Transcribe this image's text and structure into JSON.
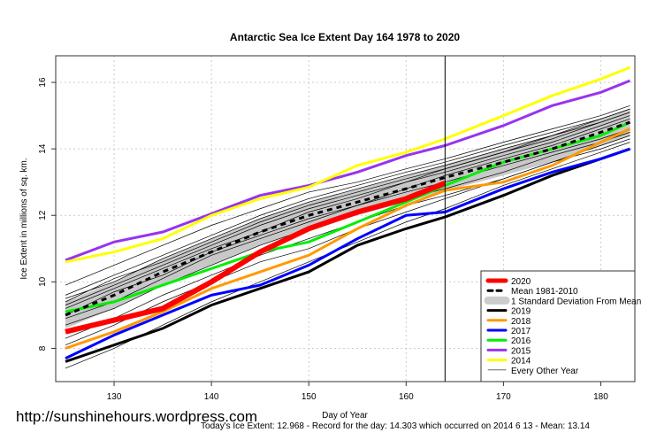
{
  "chart_data": {
    "type": "line",
    "title": "Antarctic Sea Ice Extent Day 164 1978 to 2020",
    "xlabel": "Day of Year",
    "ylabel": "Ice Extent in millions of sq. km.",
    "xlim": [
      124,
      183.5
    ],
    "ylim": [
      7.0,
      16.8
    ],
    "xticks": [
      130,
      140,
      150,
      160,
      170,
      180
    ],
    "yticks": [
      8,
      10,
      12,
      14,
      16
    ],
    "grid": true,
    "marker_day": 164,
    "legend_position": "bottom-right",
    "legend": [
      "2020",
      "Mean 1981-2010",
      "1 Standard Deviation From Mean",
      "2019",
      "2018",
      "2017",
      "2016",
      "2015",
      "2014",
      "Every Other Year"
    ],
    "x": [
      125,
      130,
      135,
      140,
      145,
      150,
      155,
      160,
      164,
      170,
      175,
      180,
      183
    ],
    "mean": {
      "name": "Mean 1981-2010",
      "color": "#000000",
      "values": [
        9.0,
        9.6,
        10.3,
        10.9,
        11.5,
        12.0,
        12.4,
        12.8,
        13.14,
        13.6,
        14.0,
        14.5,
        14.8
      ]
    },
    "std_dev": 0.4,
    "band_color": "#c8c8c8",
    "series": [
      {
        "name": "2019",
        "color": "#000000",
        "values": [
          7.6,
          8.1,
          8.6,
          9.3,
          9.8,
          10.3,
          11.1,
          11.6,
          11.95,
          12.6,
          13.2,
          13.7,
          14.0
        ]
      },
      {
        "name": "2018",
        "color": "#ff9900",
        "values": [
          8.0,
          8.5,
          9.1,
          9.8,
          10.3,
          10.8,
          11.6,
          12.3,
          12.75,
          13.0,
          13.5,
          14.2,
          14.6
        ]
      },
      {
        "name": "2017",
        "color": "#0000ff",
        "values": [
          7.7,
          8.4,
          9.0,
          9.6,
          9.9,
          10.5,
          11.3,
          12.0,
          12.1,
          12.8,
          13.3,
          13.7,
          14.0
        ]
      },
      {
        "name": "2016",
        "color": "#00ee00",
        "values": [
          9.1,
          9.4,
          9.9,
          10.4,
          10.9,
          11.2,
          11.8,
          12.4,
          12.9,
          13.6,
          14.0,
          14.4,
          14.8
        ]
      },
      {
        "name": "2015",
        "color": "#9933ee",
        "values": [
          10.65,
          11.2,
          11.5,
          12.05,
          12.6,
          12.9,
          13.3,
          13.8,
          14.1,
          14.7,
          15.3,
          15.7,
          16.05
        ]
      },
      {
        "name": "2014",
        "color": "#ffff00",
        "values": [
          10.6,
          10.9,
          11.3,
          12.0,
          12.5,
          12.85,
          13.5,
          13.9,
          14.3,
          15.0,
          15.6,
          16.1,
          16.45
        ]
      },
      {
        "name": "2020",
        "color": "#ff0000",
        "values": [
          8.5,
          8.85,
          9.2,
          10.0,
          10.9,
          11.6,
          12.1,
          12.5,
          12.97,
          null,
          null,
          null,
          null
        ]
      }
    ],
    "other_years_color": "#000000",
    "other_years": [
      [
        9.9,
        10.5,
        11.1,
        11.7,
        12.2,
        12.7,
        13.0,
        13.4,
        13.7,
        14.2,
        14.6,
        15.0,
        15.3
      ],
      [
        9.5,
        10.0,
        10.7,
        11.3,
        11.9,
        12.4,
        12.8,
        13.2,
        13.5,
        14.0,
        14.4,
        14.9,
        15.2
      ],
      [
        9.3,
        9.9,
        10.5,
        11.1,
        11.7,
        12.2,
        12.6,
        13.0,
        13.3,
        13.8,
        14.2,
        14.7,
        15.0
      ],
      [
        8.9,
        9.4,
        10.1,
        10.8,
        11.3,
        11.8,
        12.3,
        12.7,
        13.0,
        13.5,
        13.9,
        14.3,
        14.6
      ],
      [
        8.7,
        9.2,
        9.9,
        10.5,
        11.1,
        11.6,
        12.1,
        12.5,
        12.8,
        13.3,
        13.8,
        14.2,
        14.5
      ],
      [
        8.3,
        8.9,
        9.6,
        10.2,
        10.8,
        11.3,
        11.8,
        12.3,
        12.6,
        13.1,
        13.6,
        14.0,
        14.3
      ],
      [
        9.2,
        9.8,
        10.4,
        11.0,
        11.5,
        12.1,
        12.5,
        13.0,
        13.4,
        13.9,
        14.3,
        14.8,
        15.1
      ],
      [
        9.6,
        10.2,
        10.8,
        11.4,
        12.0,
        12.5,
        12.9,
        13.3,
        13.6,
        14.1,
        14.5,
        14.9,
        15.2
      ],
      [
        7.4,
        8.0,
        8.7,
        9.4,
        10.0,
        10.6,
        11.2,
        11.8,
        12.2,
        12.9,
        13.4,
        13.9,
        14.2
      ],
      [
        8.1,
        8.7,
        9.4,
        10.0,
        10.6,
        11.0,
        11.6,
        12.1,
        12.5,
        13.1,
        13.6,
        14.1,
        14.4
      ],
      [
        9.0,
        9.7,
        10.2,
        10.9,
        11.4,
        11.9,
        12.3,
        12.8,
        13.2,
        13.7,
        14.1,
        14.6,
        14.9
      ],
      [
        9.4,
        10.1,
        10.6,
        11.2,
        11.8,
        12.3,
        12.7,
        13.1,
        13.4,
        13.9,
        14.4,
        14.8,
        15.1
      ]
    ]
  },
  "watermark": "http://sunshinehours.wordpress.com",
  "footer": "Today's Ice Extent: 12.968  - Record for the day: 14.303 which occurred on 2014 6 13  - Mean: 13.14"
}
